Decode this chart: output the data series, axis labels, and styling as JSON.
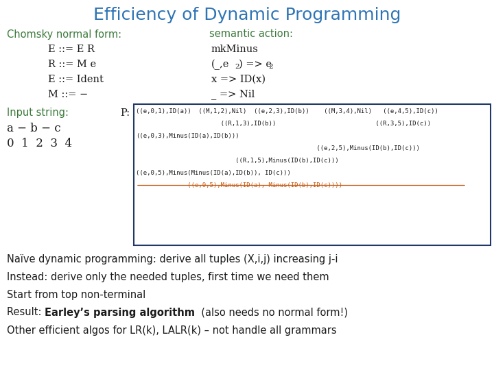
{
  "title": "Efficiency of Dynamic Programming",
  "title_color": "#2E74B5",
  "bg_color": "#FFFFFF",
  "green_color": "#3B7A3B",
  "dark_color": "#1A1A1A",
  "orange_color": "#C45911",
  "blue_box_color": "#1F3864",
  "section_left": "Chomsky normal form:",
  "section_right": "semantic action:",
  "grammar_rules": [
    "E ::= E R",
    "R ::= M e",
    "E ::= Ident",
    "M ::= −"
  ],
  "sa_line1": "mkMinus",
  "sa_line2a": "(_,e",
  "sa_line2b": "2",
  "sa_line2c": ") => e",
  "sa_line2d": "2",
  "sa_line3": "x => ID(x)",
  "sa_line4": "_ => Nil",
  "input_label": "Input string:",
  "p_label": "P:",
  "input_string": "a − b − c",
  "input_numbers": "0  1  2  3  4",
  "box_lines": [
    "((e,0,1),ID(a))  ((M,1,2),Nil)  ((e,2,3),ID(b))    ((M,3,4),Nil)   ((e,4,5),ID(c))",
    "                       ((R,1,3),ID(b))                           ((R,3,5),ID(c))",
    "((e,0,3),Minus(ID(a),ID(b)))",
    "                                                 ((e,2,5),Minus(ID(b),ID(c)))",
    "                           ((R,1,5),Minus(ID(b),ID(c)))",
    "((e,0,5),Minus(Minus(ID(a),ID(b)), ID(c)))",
    "              ((e,0,5),Minus(ID(a), Minus(ID(b),ID(c))))"
  ],
  "box_line_colors": [
    "#1A1A1A",
    "#1A1A1A",
    "#1A1A1A",
    "#1A1A1A",
    "#1A1A1A",
    "#1A1A1A",
    "#C45911"
  ],
  "box_line_strike": [
    false,
    false,
    false,
    false,
    false,
    false,
    true
  ],
  "bottom_lines": [
    {
      "pre": "Naïve dynamic programming: derive all tuples (X,i,j) increasing j-i",
      "bold": "",
      "post": ""
    },
    {
      "pre": "Instead: derive only the needed tuples, first time we need them",
      "bold": "",
      "post": ""
    },
    {
      "pre": "Start from top non-terminal",
      "bold": "",
      "post": ""
    },
    {
      "pre": "Result: ",
      "bold": "Earley’s parsing algorithm",
      "post": "  (also needs no normal form!)"
    },
    {
      "pre": "Other efficient algos for LR(k), LALR(k) – not handle all grammars",
      "bold": "",
      "post": ""
    }
  ]
}
